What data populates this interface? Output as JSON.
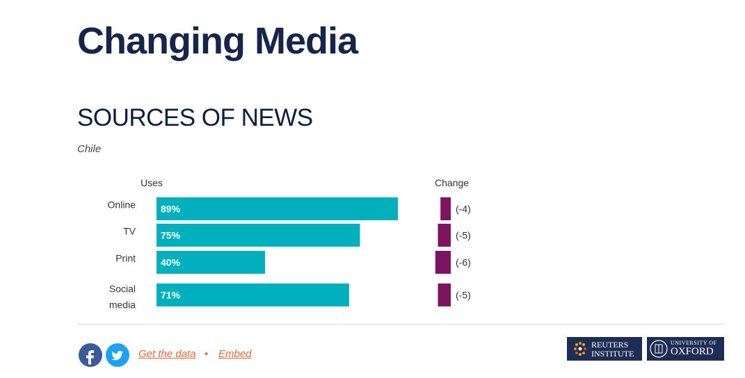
{
  "page_title": "Changing Media",
  "section_title": "SOURCES OF NEWS",
  "subtitle": "Chile",
  "chart_data": {
    "type": "bar",
    "categories": [
      "Online",
      "TV",
      "Print",
      "Social media"
    ],
    "series": [
      {
        "name": "Uses",
        "values": [
          89,
          75,
          40,
          71
        ],
        "labels": [
          "89%",
          "75%",
          "40%",
          "71%"
        ],
        "color": "#00b0bd"
      },
      {
        "name": "Change",
        "values": [
          -4,
          -5,
          -6,
          -5
        ],
        "labels": [
          "(-4)",
          "(-5)",
          "(-6)",
          "(-5)"
        ],
        "color": "#7d1460"
      }
    ],
    "xlim": [
      0,
      100
    ],
    "grid": false
  },
  "footer": {
    "facebook_icon": "facebook-icon",
    "twitter_icon": "twitter-icon",
    "get_data_label": "Get the data",
    "separator": "•",
    "embed_label": "Embed",
    "reuters_logo": [
      "REUTERS",
      "INSTITUTE"
    ],
    "oxford_logo": [
      "UNIVERSITY OF",
      "OXFORD"
    ]
  },
  "colors": {
    "accent": "#00b0bd",
    "change": "#7d1460",
    "link": "#e0683a",
    "logo_bg": "#1e2d54"
  }
}
